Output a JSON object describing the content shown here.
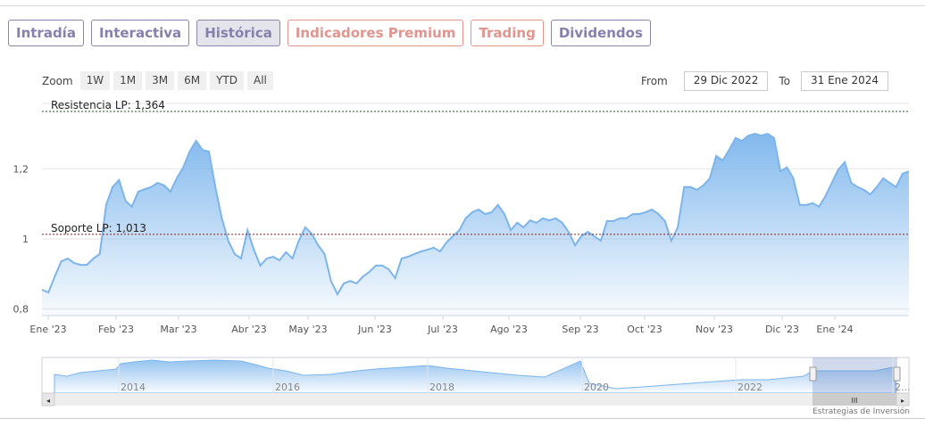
{
  "tabs": [
    {
      "label": "Intradía",
      "style": "normal"
    },
    {
      "label": "Interactiva",
      "style": "normal"
    },
    {
      "label": "Histórica",
      "style": "active"
    },
    {
      "label": "Indicadores Premium",
      "style": "red"
    },
    {
      "label": "Trading",
      "style": "red"
    },
    {
      "label": "Dividendos",
      "style": "normal"
    }
  ],
  "zoom": {
    "label": "Zoom",
    "buttons": [
      "1W",
      "1M",
      "3M",
      "6M",
      "YTD",
      "All"
    ]
  },
  "range": {
    "from_label": "From",
    "from": "29 Dic 2022",
    "to_label": "To",
    "to": "31 Ene 2024"
  },
  "credit": "Estrategias de Inversión",
  "chart_data": {
    "type": "area",
    "y_ticks": [
      {
        "v": 0.8,
        "label": "0,8"
      },
      {
        "v": 1.0,
        "label": "1"
      },
      {
        "v": 1.2,
        "label": "1,2"
      }
    ],
    "ylim": [
      0.78,
      1.4
    ],
    "x_ticks": [
      "Ene '23",
      "Feb '23",
      "Mar '23",
      "Abr '23",
      "May '23",
      "Jun '23",
      "Jul '23",
      "Ago '23",
      "Sep '23",
      "Oct '23",
      "Nov '23",
      "Dic '23",
      "Ene '24"
    ],
    "lines": [
      {
        "label": "Resistencia LP: 1,364",
        "v": 1.364,
        "color": "#1a5e1a"
      },
      {
        "label": "Soporte LP: 1,013",
        "v": 1.013,
        "color": "#8b1a1a"
      }
    ],
    "color": "#7cb5ec",
    "values": [
      0.855,
      0.847,
      0.893,
      0.936,
      0.944,
      0.931,
      0.926,
      0.926,
      0.944,
      0.957,
      1.097,
      1.148,
      1.168,
      1.109,
      1.092,
      1.135,
      1.142,
      1.148,
      1.16,
      1.153,
      1.135,
      1.173,
      1.204,
      1.249,
      1.28,
      1.254,
      1.249,
      1.148,
      1.059,
      0.995,
      0.957,
      0.944,
      1.025,
      0.969,
      0.924,
      0.944,
      0.949,
      0.939,
      0.962,
      0.944,
      0.995,
      1.033,
      1.015,
      0.982,
      0.957,
      0.88,
      0.842,
      0.873,
      0.88,
      0.873,
      0.893,
      0.906,
      0.924,
      0.924,
      0.913,
      0.888,
      0.944,
      0.949,
      0.957,
      0.964,
      0.969,
      0.975,
      0.964,
      0.99,
      1.008,
      1.025,
      1.059,
      1.076,
      1.084,
      1.071,
      1.076,
      1.097,
      1.071,
      1.025,
      1.046,
      1.033,
      1.053,
      1.046,
      1.059,
      1.053,
      1.059,
      1.046,
      1.02,
      0.982,
      1.008,
      1.02,
      1.008,
      0.995,
      1.051,
      1.051,
      1.059,
      1.059,
      1.071,
      1.071,
      1.076,
      1.084,
      1.071,
      1.051,
      0.995,
      1.033,
      1.148,
      1.148,
      1.14,
      1.153,
      1.173,
      1.237,
      1.224,
      1.254,
      1.288,
      1.28,
      1.295,
      1.3,
      1.295,
      1.3,
      1.288,
      1.193,
      1.204,
      1.173,
      1.097,
      1.097,
      1.102,
      1.092,
      1.122,
      1.16,
      1.198,
      1.219,
      1.16,
      1.148,
      1.14,
      1.127,
      1.148,
      1.173,
      1.16,
      1.148,
      1.186,
      1.193
    ],
    "navigator_years": [
      "2014",
      "2016",
      "2018",
      "2020",
      "2022",
      "2..."
    ]
  }
}
